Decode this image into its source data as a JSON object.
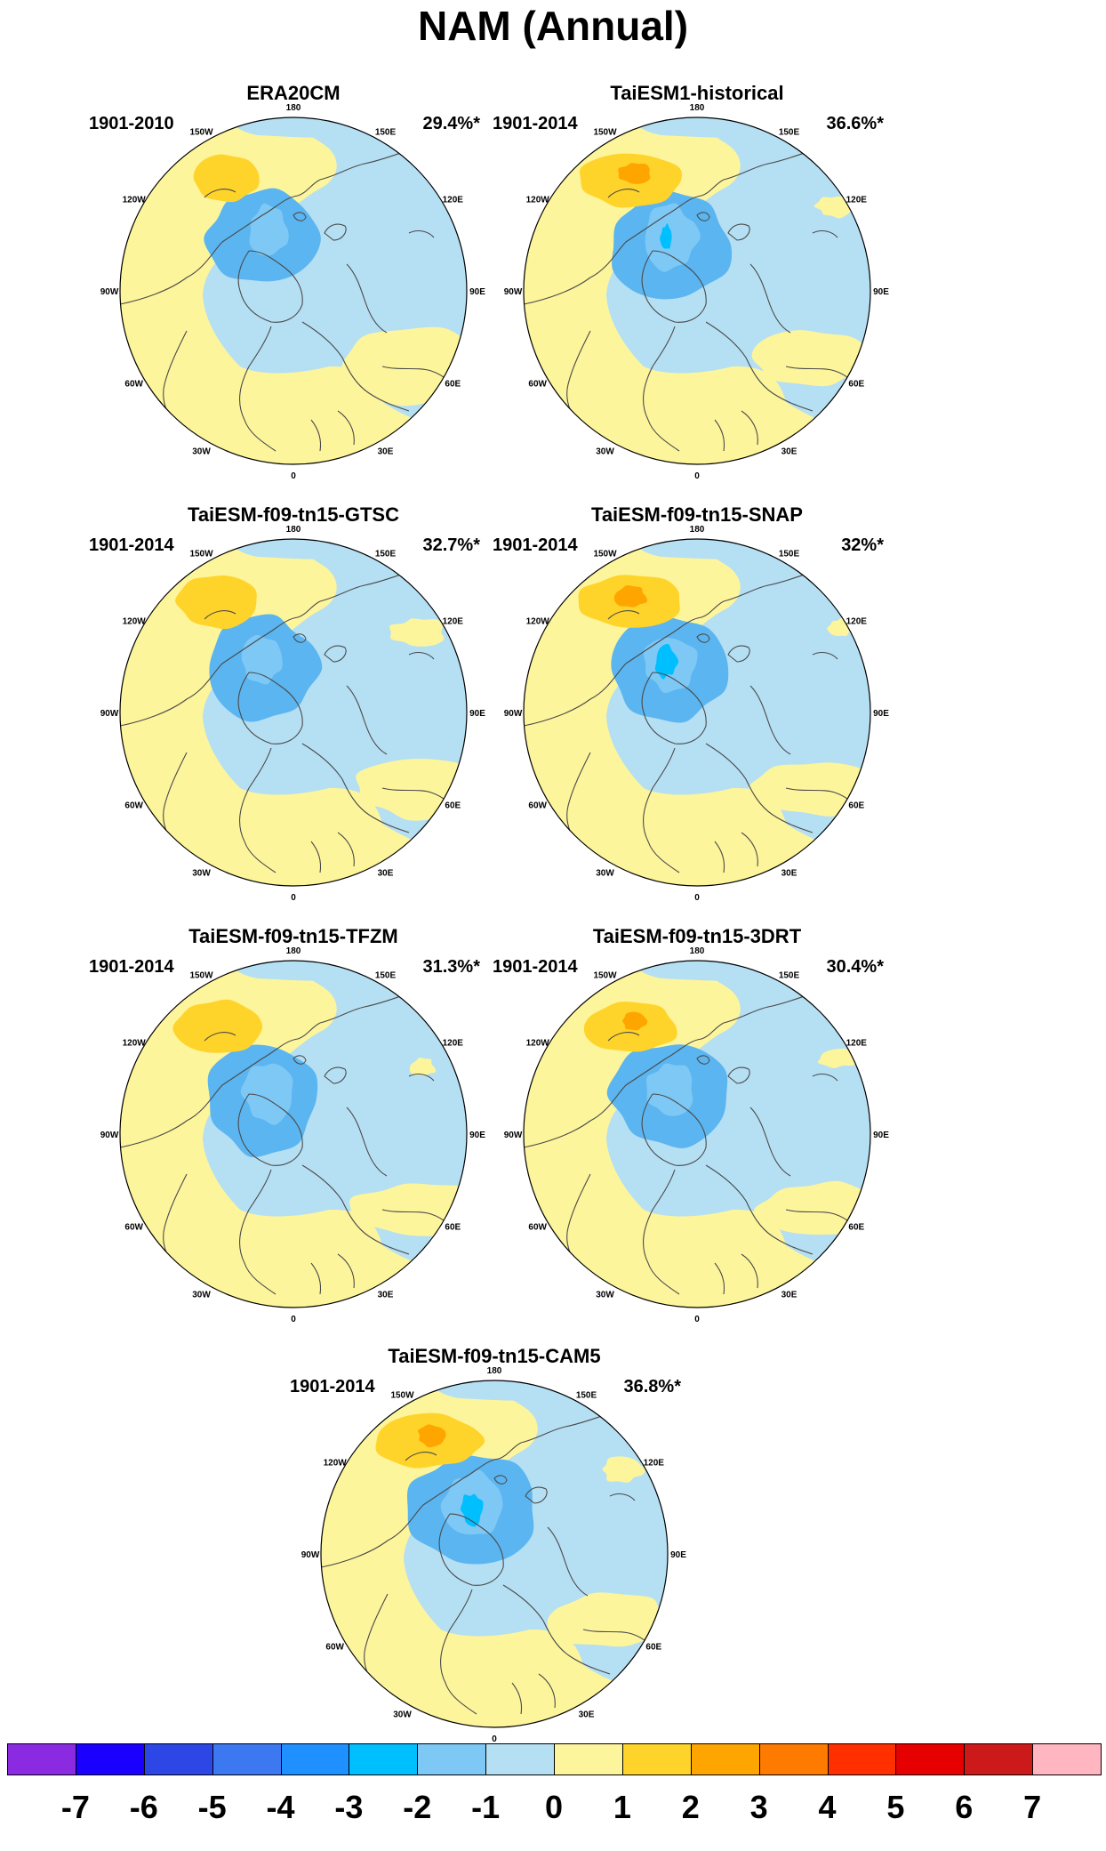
{
  "title": "NAM (Annual)",
  "panels": [
    {
      "title": "ERA20CM",
      "period": "1901-2010",
      "variance": "29.4%*",
      "variant": "era"
    },
    {
      "title": "TaiESM1-historical",
      "period": "1901-2014",
      "variance": "36.6%*",
      "variant": "hist"
    },
    {
      "title": "TaiESM-f09-tn15-GTSC",
      "period": "1901-2014",
      "variance": "32.7%*",
      "variant": "gtsc"
    },
    {
      "title": "TaiESM-f09-tn15-SNAP",
      "period": "1901-2014",
      "variance": "32%*",
      "variant": "snap"
    },
    {
      "title": "TaiESM-f09-tn15-TFZM",
      "period": "1901-2014",
      "variance": "31.3%*",
      "variant": "tfzm"
    },
    {
      "title": "TaiESM-f09-tn15-3DRT",
      "period": "1901-2014",
      "variance": "30.4%*",
      "variant": "3drt"
    },
    {
      "title": "TaiESM-f09-tn15-CAM5",
      "period": "1901-2014",
      "variance": "36.8%*",
      "variant": "cam5"
    }
  ],
  "longitude_labels": [
    "180",
    "150E",
    "120E",
    "90E",
    "60E",
    "30E",
    "0",
    "30W",
    "60W",
    "90W",
    "120W",
    "150W"
  ],
  "colorbar": {
    "colors": [
      "#8a2be2",
      "#1a00ff",
      "#2d46e6",
      "#3c78f0",
      "#1e90ff",
      "#00bfff",
      "#7ec8f5",
      "#b5dff3",
      "#fdf59c",
      "#ffd42a",
      "#ffa500",
      "#ff7b00",
      "#ff2f00",
      "#e60000",
      "#cc1a1a",
      "#ffb6c1"
    ],
    "labels": [
      "-7",
      "-6",
      "-5",
      "-4",
      "-3",
      "-2",
      "-1",
      "0",
      "1",
      "2",
      "3",
      "4",
      "5",
      "6",
      "7"
    ]
  },
  "field_colors": {
    "light_blue": "#b5dff3",
    "mid_blue": "#7ec8f5",
    "blue": "#5bb5f0",
    "cyan": "#00bfff",
    "yellow": "#fdf59c",
    "gold": "#ffd42a",
    "orange": "#ffa500",
    "coast": "#4a4a4a"
  }
}
